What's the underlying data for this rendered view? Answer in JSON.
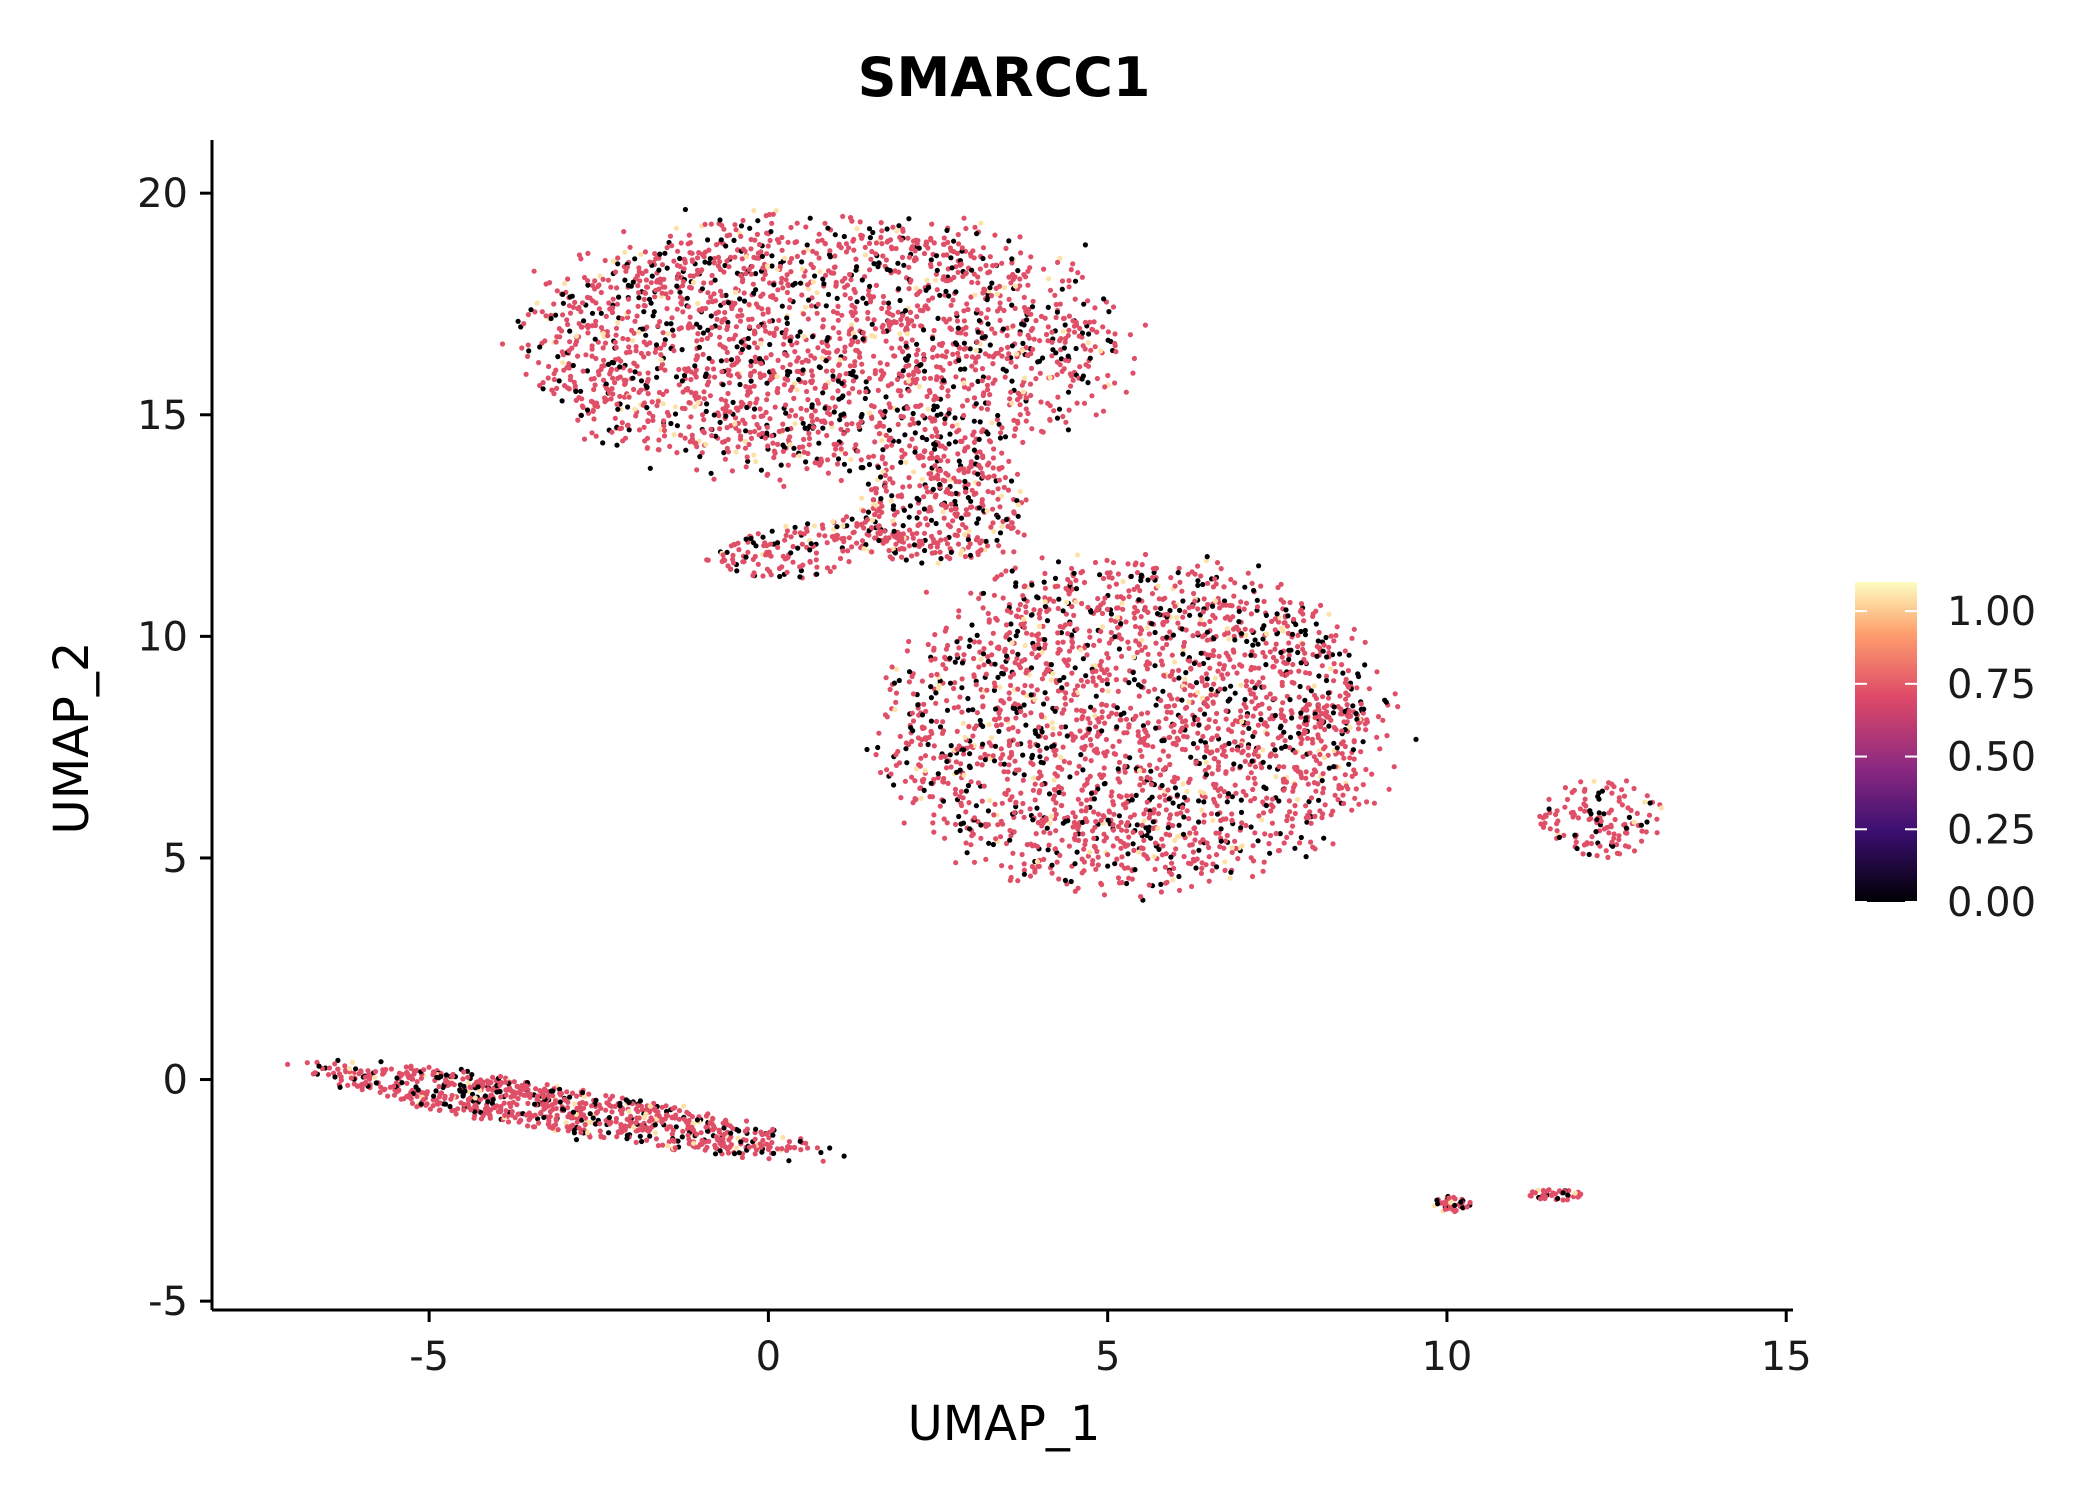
{
  "chart_data": {
    "type": "scatter",
    "title": "SMARCC1",
    "xlabel": "UMAP_1",
    "ylabel": "UMAP_2",
    "xlim": [
      -8.2,
      15.1
    ],
    "ylim": [
      -5.2,
      21.2
    ],
    "x_ticks": [
      -5,
      0,
      5,
      10,
      15
    ],
    "x_tick_labels": [
      "-5",
      "0",
      "5",
      "10",
      "15"
    ],
    "y_ticks": [
      -5,
      0,
      5,
      10,
      15,
      20
    ],
    "y_tick_labels": [
      "-5",
      "0",
      "5",
      "10",
      "15",
      "20"
    ],
    "grid": false,
    "legend": {
      "placement": "right",
      "type": "colorbar",
      "min": 0,
      "max": 1.1,
      "ticks": [
        0,
        0.25,
        0.5,
        0.75,
        1.0
      ],
      "tick_labels": [
        "0.00",
        "0.25",
        "0.50",
        "0.75",
        "1.00"
      ],
      "colors": [
        "#000004",
        "#3b0f70",
        "#8c2981",
        "#de4968",
        "#fe9f6d",
        "#fcfdbf"
      ]
    },
    "clusters": [
      {
        "name": "top-left",
        "center": [
          0.8,
          16.6
        ],
        "spread": [
          4.2,
          2.8
        ],
        "angle": 0,
        "n": 2300
      },
      {
        "name": "bridge",
        "center": [
          2.6,
          13.0
        ],
        "spread": [
          1.2,
          1.3
        ],
        "angle": 0,
        "n": 350
      },
      {
        "name": "small-arm",
        "center": [
          0.8,
          12.0
        ],
        "spread": [
          1.6,
          0.6
        ],
        "angle": 0.15,
        "n": 200
      },
      {
        "name": "middle",
        "center": [
          5.4,
          8.0
        ],
        "spread": [
          3.6,
          3.6
        ],
        "angle": 0,
        "n": 2400
      },
      {
        "name": "middle-tail",
        "center": [
          8.2,
          8.2
        ],
        "spread": [
          0.8,
          0.25
        ],
        "angle": 0,
        "n": 60
      },
      {
        "name": "bottom-left",
        "center": [
          -3.0,
          -0.7
        ],
        "spread": [
          3.7,
          0.5
        ],
        "angle": -0.25,
        "n": 900
      },
      {
        "name": "right-ring",
        "center": [
          12.3,
          5.9
        ],
        "spread": [
          0.9,
          0.9
        ],
        "angle": 0,
        "n": 140
      },
      {
        "name": "bottom-right-a",
        "center": [
          10.1,
          -2.8
        ],
        "spread": [
          0.3,
          0.2
        ],
        "angle": 0,
        "n": 40
      },
      {
        "name": "bottom-right-b",
        "center": [
          11.6,
          -2.6
        ],
        "spread": [
          0.45,
          0.12
        ],
        "angle": 0,
        "n": 40
      }
    ],
    "expression_mix": {
      "zero": 0.22,
      "mid": 0.72,
      "high": 0.06
    },
    "expression_values": {
      "zero": 0.0,
      "mid": 0.72,
      "high": 1.05
    }
  }
}
